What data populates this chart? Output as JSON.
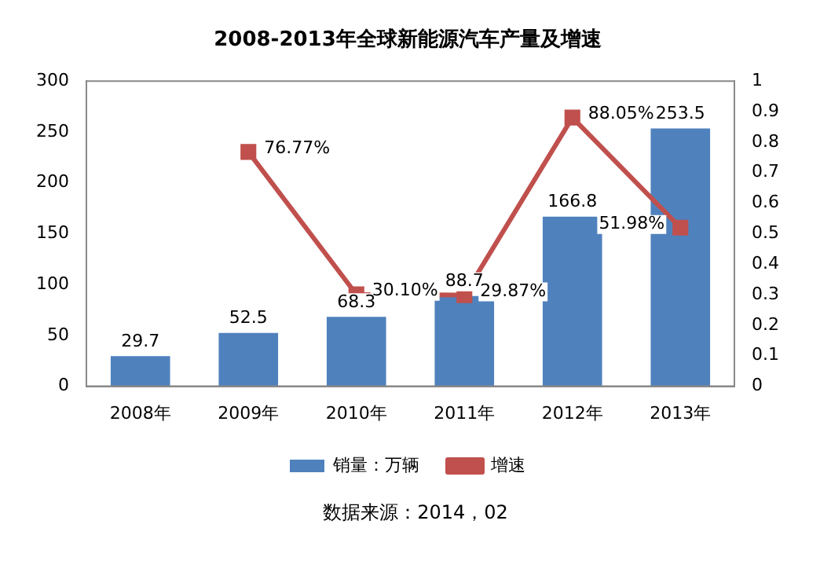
{
  "chart_data": {
    "type": "bar",
    "title": "2008-2013年全球新能源汽车产量及增速",
    "categories": [
      "2008年",
      "2009年",
      "2010年",
      "2011年",
      "2012年",
      "2013年"
    ],
    "series": [
      {
        "name": "销量：万辆",
        "color": "#4f81bd",
        "values": [
          29.7,
          52.5,
          68.3,
          88.7,
          166.8,
          253.5
        ],
        "value_labels": [
          "29.7",
          "52.5",
          "68.3",
          "88.7",
          "166.8",
          "253.5"
        ]
      },
      {
        "name": "增速",
        "type": "line",
        "axis": "y2",
        "color": "#c0504d",
        "values": [
          null,
          0.7677,
          0.301,
          0.2987,
          0.8805,
          0.5198
        ],
        "value_labels": [
          null,
          "76.77%",
          "30.10%",
          "29.87%",
          "88.05%",
          "51.98%"
        ]
      }
    ],
    "ylim": [
      0,
      300
    ],
    "yticks": [
      0,
      50,
      100,
      150,
      200,
      250,
      300
    ],
    "y2lim": [
      0,
      1
    ],
    "y2ticks": [
      0,
      0.1,
      0.2,
      0.3,
      0.4,
      0.5,
      0.6,
      0.7,
      0.8,
      0.9,
      1
    ],
    "grid": false,
    "legend": "bottom",
    "marker": "square",
    "line_style": "solid",
    "annotations": [
      "数据来源：2014，02"
    ]
  }
}
